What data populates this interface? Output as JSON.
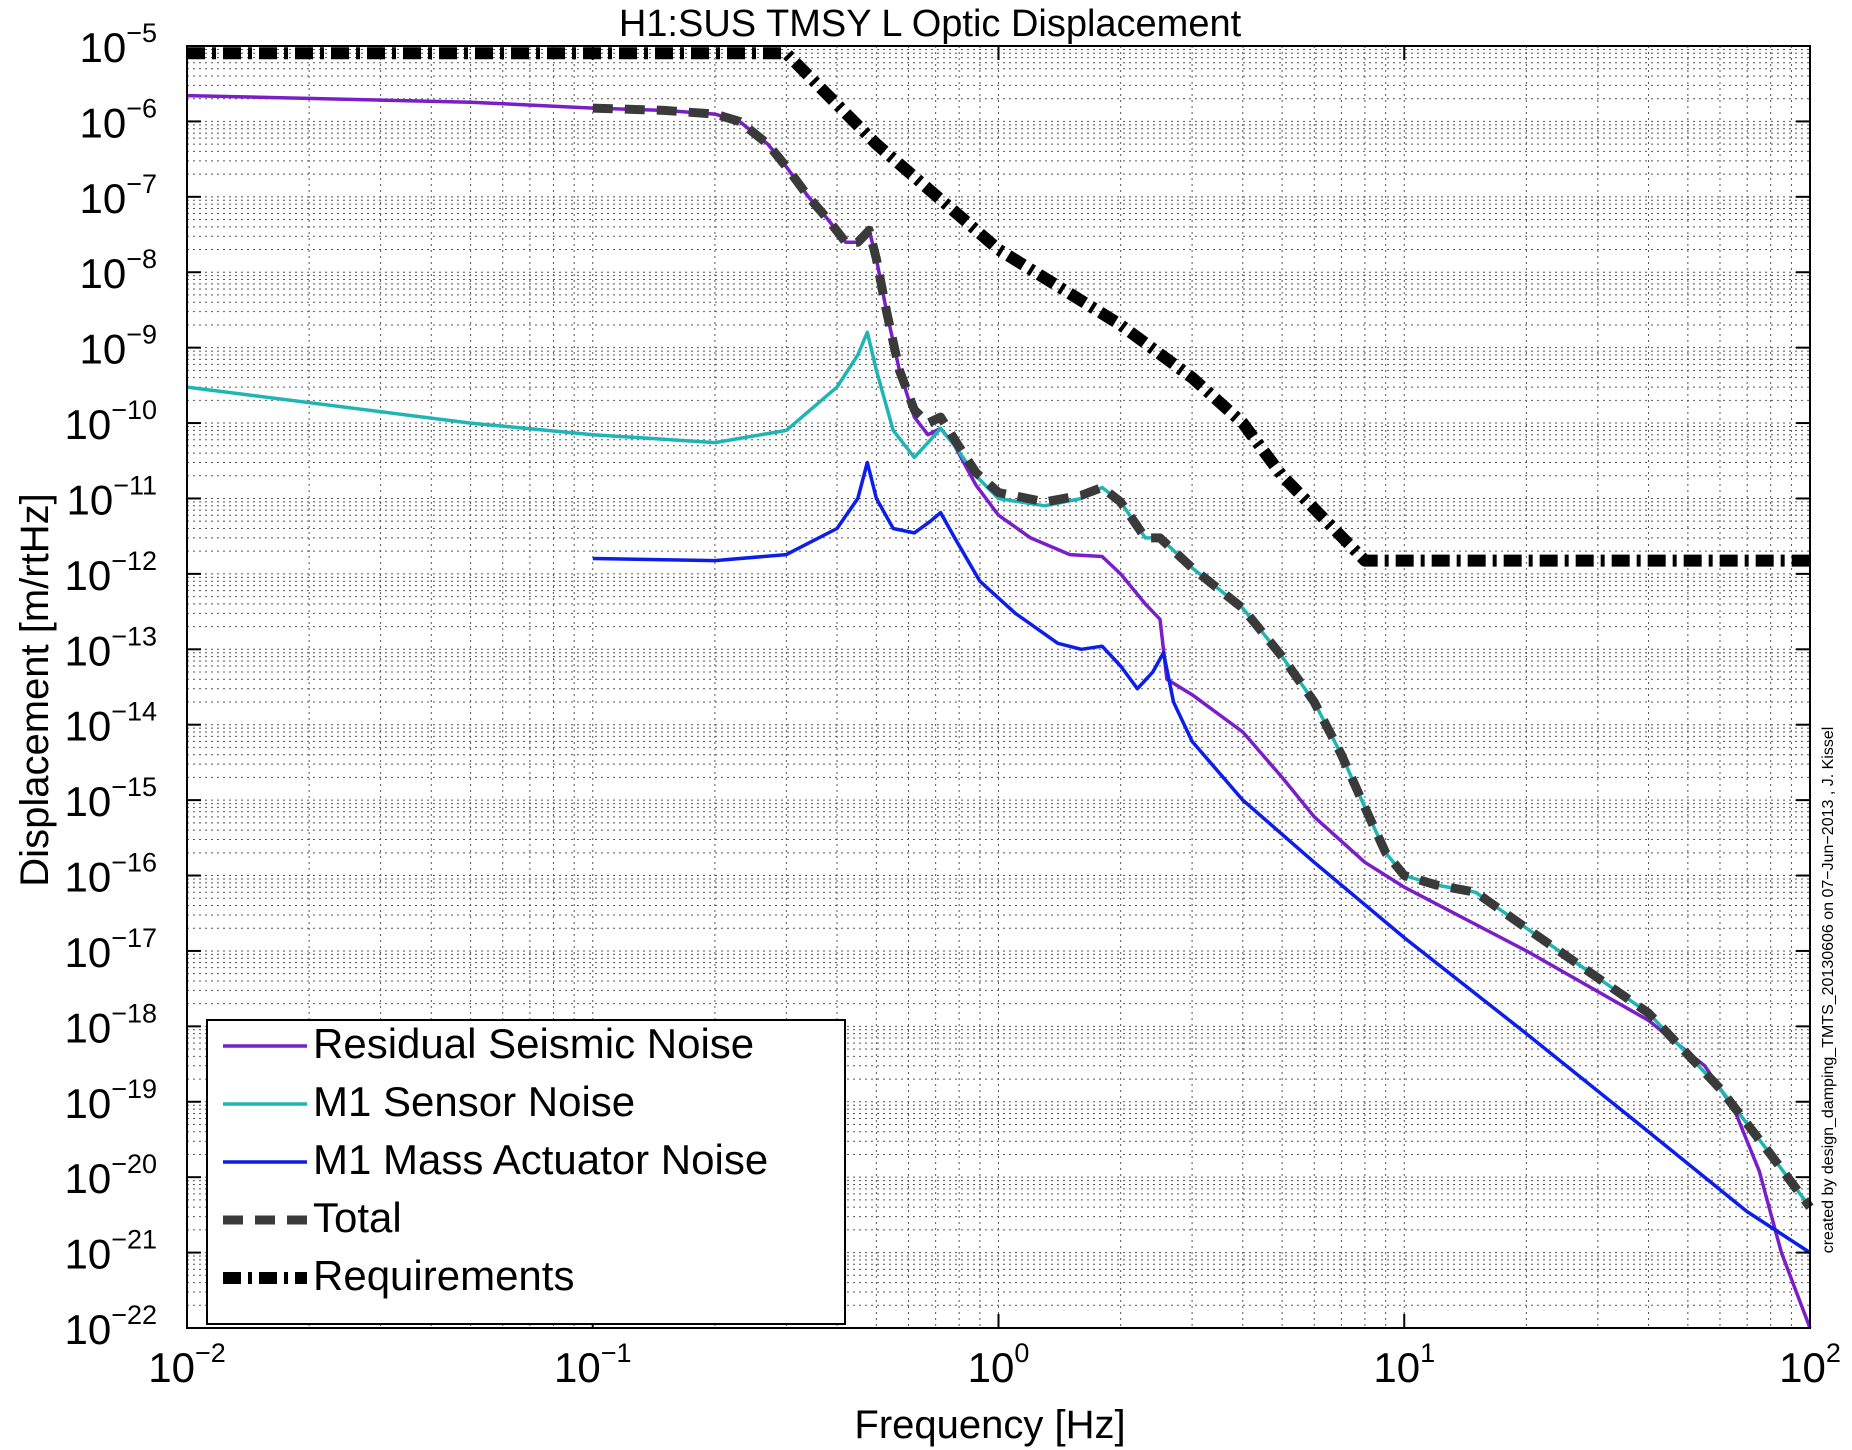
{
  "chart_data": {
    "type": "line",
    "title": "H1:SUS TMSY L Optic Displacement",
    "xlabel": "Frequency [Hz]",
    "ylabel": "Displacement [m/rtHz]",
    "xscale": "log",
    "yscale": "log",
    "xlim": [
      0.01,
      100
    ],
    "ylim": [
      1e-22,
      1e-05
    ],
    "grid": true,
    "legend_position": "bottom-left",
    "xtick_labels": [
      {
        "base": "10",
        "exp": "−2",
        "value": 0.01
      },
      {
        "base": "10",
        "exp": "−1",
        "value": 0.1
      },
      {
        "base": "10",
        "exp": "0",
        "value": 1
      },
      {
        "base": "10",
        "exp": "1",
        "value": 10
      },
      {
        "base": "10",
        "exp": "2",
        "value": 100
      }
    ],
    "ytick_labels": [
      {
        "base": "10",
        "exp": "−5",
        "value": 1e-05
      },
      {
        "base": "10",
        "exp": "−6",
        "value": 1e-06
      },
      {
        "base": "10",
        "exp": "−7",
        "value": 1e-07
      },
      {
        "base": "10",
        "exp": "−8",
        "value": 1e-08
      },
      {
        "base": "10",
        "exp": "−9",
        "value": 1e-09
      },
      {
        "base": "10",
        "exp": "−10",
        "value": 1e-10
      },
      {
        "base": "10",
        "exp": "−11",
        "value": 1e-11
      },
      {
        "base": "10",
        "exp": "−12",
        "value": 1e-12
      },
      {
        "base": "10",
        "exp": "−13",
        "value": 1e-13
      },
      {
        "base": "10",
        "exp": "−14",
        "value": 1e-14
      },
      {
        "base": "10",
        "exp": "−15",
        "value": 1e-15
      },
      {
        "base": "10",
        "exp": "−16",
        "value": 1e-16
      },
      {
        "base": "10",
        "exp": "−17",
        "value": 1e-17
      },
      {
        "base": "10",
        "exp": "−18",
        "value": 1e-18
      },
      {
        "base": "10",
        "exp": "−19",
        "value": 1e-19
      },
      {
        "base": "10",
        "exp": "−20",
        "value": 1e-20
      },
      {
        "base": "10",
        "exp": "−21",
        "value": 1e-21
      },
      {
        "base": "10",
        "exp": "−22",
        "value": 1e-22
      }
    ],
    "annotation": "created by design_damping_TMTS_20130606 on 07−Jun−2013 , J. Kissel",
    "series": [
      {
        "name": "Residual Seismic Noise",
        "color": "#7a1fc8",
        "style": "solid",
        "points": [
          [
            0.01,
            2.2e-06
          ],
          [
            0.05,
            1.8e-06
          ],
          [
            0.1,
            1.5e-06
          ],
          [
            0.15,
            1.4e-06
          ],
          [
            0.2,
            1.25e-06
          ],
          [
            0.23,
            1e-06
          ],
          [
            0.27,
            5e-07
          ],
          [
            0.3,
            2.5e-07
          ],
          [
            0.34,
            1e-07
          ],
          [
            0.38,
            5e-08
          ],
          [
            0.42,
            2.5e-08
          ],
          [
            0.45,
            2.5e-08
          ],
          [
            0.465,
            3e-08
          ],
          [
            0.48,
            3.6e-08
          ],
          [
            0.5,
            1.5e-08
          ],
          [
            0.53,
            3e-09
          ],
          [
            0.57,
            5e-10
          ],
          [
            0.62,
            1.2e-10
          ],
          [
            0.67,
            7e-11
          ],
          [
            0.72,
            8.5e-11
          ],
          [
            0.78,
            5e-11
          ],
          [
            0.88,
            1.5e-11
          ],
          [
            1.0,
            6e-12
          ],
          [
            1.2,
            3e-12
          ],
          [
            1.5,
            1.8e-12
          ],
          [
            1.8,
            1.7e-12
          ],
          [
            2.0,
            1e-12
          ],
          [
            2.3,
            4e-13
          ],
          [
            2.5,
            2.5e-13
          ],
          [
            2.6,
            4e-14
          ],
          [
            3.0,
            2.5e-14
          ],
          [
            4.0,
            8e-15
          ],
          [
            5.0,
            2e-15
          ],
          [
            6.0,
            6e-16
          ],
          [
            8.0,
            1.5e-16
          ],
          [
            10.0,
            7e-17
          ],
          [
            20.0,
            1e-17
          ],
          [
            40.0,
            1.2e-18
          ],
          [
            55.0,
            3e-19
          ],
          [
            65.0,
            8e-20
          ],
          [
            75.0,
            1.2e-20
          ],
          [
            85.0,
            1e-21
          ],
          [
            100.0,
            1e-22
          ]
        ]
      },
      {
        "name": "M1 Sensor Noise",
        "color": "#1fb5b5",
        "style": "solid",
        "points": [
          [
            0.01,
            3e-10
          ],
          [
            0.05,
            1e-10
          ],
          [
            0.1,
            7e-11
          ],
          [
            0.2,
            5.5e-11
          ],
          [
            0.3,
            8e-11
          ],
          [
            0.4,
            3e-10
          ],
          [
            0.45,
            8e-10
          ],
          [
            0.475,
            1.6e-09
          ],
          [
            0.5,
            5e-10
          ],
          [
            0.55,
            8e-11
          ],
          [
            0.62,
            3.5e-11
          ],
          [
            0.68,
            6e-11
          ],
          [
            0.72,
            8.5e-11
          ],
          [
            0.78,
            5e-11
          ],
          [
            0.88,
            2e-11
          ],
          [
            1.0,
            1e-11
          ],
          [
            1.3,
            8e-12
          ],
          [
            1.6,
            1e-11
          ],
          [
            1.8,
            1.4e-11
          ],
          [
            2.0,
            9e-12
          ],
          [
            2.3,
            3e-12
          ],
          [
            2.5,
            3e-12
          ],
          [
            3.0,
            1.2e-12
          ],
          [
            4.0,
            3.5e-13
          ],
          [
            5.0,
            8e-14
          ],
          [
            6.0,
            2e-14
          ],
          [
            7.0,
            4e-15
          ],
          [
            8.0,
            8e-16
          ],
          [
            9.0,
            2e-16
          ],
          [
            10.0,
            1e-16
          ],
          [
            12.0,
            7.5e-17
          ],
          [
            15.0,
            6e-17
          ],
          [
            20.0,
            2e-17
          ],
          [
            40.0,
            1.5e-18
          ],
          [
            60.0,
            1.5e-19
          ],
          [
            80.0,
            2e-20
          ],
          [
            100.0,
            4e-21
          ]
        ]
      },
      {
        "name": "M1 Mass Actuator Noise",
        "color": "#0d1ee8",
        "style": "solid",
        "points": [
          [
            0.1,
            1.6e-12
          ],
          [
            0.2,
            1.5e-12
          ],
          [
            0.3,
            1.8e-12
          ],
          [
            0.4,
            4e-12
          ],
          [
            0.45,
            1e-11
          ],
          [
            0.475,
            3e-11
          ],
          [
            0.5,
            1e-11
          ],
          [
            0.55,
            4e-12
          ],
          [
            0.62,
            3.5e-12
          ],
          [
            0.68,
            5e-12
          ],
          [
            0.72,
            6.5e-12
          ],
          [
            0.78,
            3e-12
          ],
          [
            0.9,
            8e-13
          ],
          [
            1.1,
            3e-13
          ],
          [
            1.4,
            1.2e-13
          ],
          [
            1.6,
            1e-13
          ],
          [
            1.8,
            1.1e-13
          ],
          [
            2.0,
            6e-14
          ],
          [
            2.2,
            3e-14
          ],
          [
            2.4,
            5e-14
          ],
          [
            2.55,
            9e-14
          ],
          [
            2.7,
            2e-14
          ],
          [
            3.0,
            6e-15
          ],
          [
            4.0,
            1e-15
          ],
          [
            6.0,
            1.5e-16
          ],
          [
            10.0,
            1.5e-17
          ],
          [
            20.0,
            8e-19
          ],
          [
            40.0,
            4e-20
          ],
          [
            70.0,
            3.5e-21
          ],
          [
            100.0,
            1e-21
          ]
        ]
      },
      {
        "name": "Total",
        "color": "#3a3a3a",
        "style": "dashed",
        "points": [
          [
            0.1,
            1.5e-06
          ],
          [
            0.15,
            1.4e-06
          ],
          [
            0.2,
            1.25e-06
          ],
          [
            0.23,
            1e-06
          ],
          [
            0.27,
            5e-07
          ],
          [
            0.3,
            2.5e-07
          ],
          [
            0.34,
            1e-07
          ],
          [
            0.38,
            5e-08
          ],
          [
            0.42,
            2.5e-08
          ],
          [
            0.45,
            2.5e-08
          ],
          [
            0.465,
            3e-08
          ],
          [
            0.48,
            3.6e-08
          ],
          [
            0.5,
            1.5e-08
          ],
          [
            0.53,
            3e-09
          ],
          [
            0.57,
            5e-10
          ],
          [
            0.62,
            1.5e-10
          ],
          [
            0.67,
            1e-10
          ],
          [
            0.72,
            1.2e-10
          ],
          [
            0.78,
            6e-11
          ],
          [
            0.88,
            2.2e-11
          ],
          [
            1.0,
            1.2e-11
          ],
          [
            1.3,
            9e-12
          ],
          [
            1.6,
            1.1e-11
          ],
          [
            1.8,
            1.4e-11
          ],
          [
            2.0,
            9e-12
          ],
          [
            2.3,
            3e-12
          ],
          [
            2.5,
            3e-12
          ],
          [
            3.0,
            1.2e-12
          ],
          [
            4.0,
            3.5e-13
          ],
          [
            5.0,
            8e-14
          ],
          [
            6.0,
            2e-14
          ],
          [
            7.0,
            4e-15
          ],
          [
            8.0,
            8e-16
          ],
          [
            9.0,
            2e-16
          ],
          [
            10.0,
            1e-16
          ],
          [
            12.0,
            7.5e-17
          ],
          [
            15.0,
            6e-17
          ],
          [
            20.0,
            2e-17
          ],
          [
            40.0,
            1.5e-18
          ],
          [
            60.0,
            1.5e-19
          ],
          [
            80.0,
            2e-20
          ],
          [
            100.0,
            4e-21
          ]
        ]
      },
      {
        "name": "Requirements",
        "color": "#000000",
        "style": "dashdot",
        "points": [
          [
            0.01,
            8e-06
          ],
          [
            0.3,
            8e-06
          ],
          [
            0.5,
            5e-07
          ],
          [
            1.0,
            2e-08
          ],
          [
            2.0,
            2e-09
          ],
          [
            3.0,
            4e-10
          ],
          [
            4.0,
            1e-10
          ],
          [
            5.0,
            2e-11
          ],
          [
            8.0,
            1.5e-12
          ],
          [
            100.0,
            1.5e-12
          ]
        ]
      }
    ]
  }
}
